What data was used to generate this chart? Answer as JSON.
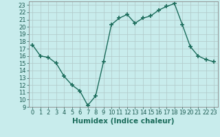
{
  "xlabel": "Humidex (Indice chaleur)",
  "x": [
    0,
    1,
    2,
    3,
    4,
    5,
    6,
    7,
    8,
    9,
    10,
    11,
    12,
    13,
    14,
    15,
    16,
    17,
    18,
    19,
    20,
    21,
    22,
    23
  ],
  "y": [
    17.5,
    16.0,
    15.8,
    15.0,
    13.2,
    12.0,
    11.2,
    9.2,
    10.5,
    15.2,
    20.3,
    21.2,
    21.7,
    20.5,
    21.2,
    21.5,
    22.3,
    22.8,
    23.2,
    20.3,
    17.3,
    16.0,
    15.5,
    15.2
  ],
  "line_color": "#1a6b5a",
  "marker": "+",
  "marker_size": 4,
  "bg_color": "#c8ecec",
  "grid_color": "#b0c8c8",
  "ylim": [
    9,
    23.5
  ],
  "xlim": [
    -0.5,
    23.5
  ],
  "yticks": [
    9,
    10,
    11,
    12,
    13,
    14,
    15,
    16,
    17,
    18,
    19,
    20,
    21,
    22,
    23
  ],
  "xticks": [
    0,
    1,
    2,
    3,
    4,
    5,
    6,
    7,
    8,
    9,
    10,
    11,
    12,
    13,
    14,
    15,
    16,
    17,
    18,
    19,
    20,
    21,
    22,
    23
  ],
  "xlabel_fontsize": 7.5,
  "tick_fontsize": 6,
  "line_width": 1.0
}
